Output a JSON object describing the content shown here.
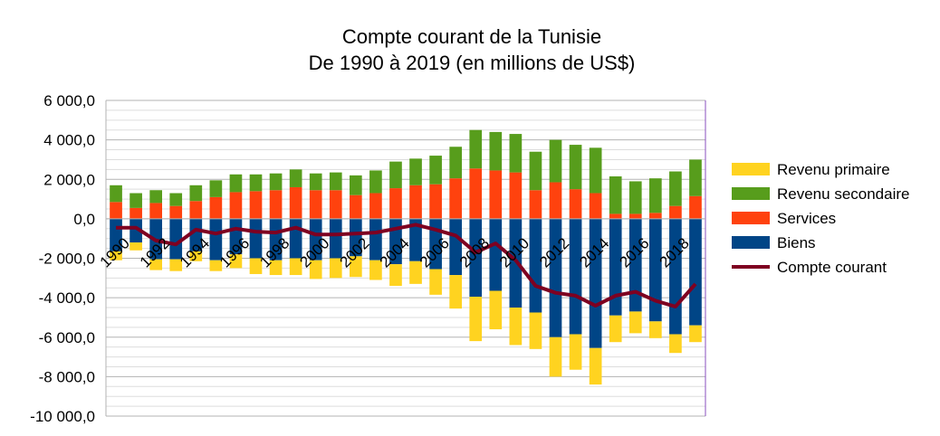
{
  "chart_data": {
    "type": "bar",
    "subtype": "stacked-bar-with-line",
    "title": "Compte courant de la Tunisie",
    "subtitle": "De 1990 à 2019 (en millions de US$)",
    "xlabel": "",
    "ylabel": "",
    "ylim": [
      -10000,
      6000
    ],
    "yticks": [
      6000,
      4000,
      2000,
      0,
      -2000,
      -4000,
      -6000,
      -8000,
      -10000
    ],
    "ytick_labels": [
      "6 000,0",
      "4 000,0",
      "2 000,0",
      "0,0",
      "-2 000,0",
      "-4 000,0",
      "-6 000,0",
      "-8 000,0",
      "-10 000,0"
    ],
    "grid": true,
    "legend_position": "right",
    "categories": [
      "1990",
      "1991",
      "1992",
      "1993",
      "1994",
      "1995",
      "1996",
      "1997",
      "1998",
      "1999",
      "2000",
      "2001",
      "2002",
      "2003",
      "2004",
      "2005",
      "2006",
      "2007",
      "2008",
      "2009",
      "2010",
      "2011",
      "2012",
      "2013",
      "2014",
      "2015",
      "2016",
      "2017",
      "2018",
      "2019"
    ],
    "xtick_labels": [
      "1990",
      "1992",
      "1994",
      "1996",
      "1998",
      "2000",
      "2002",
      "2004",
      "2006",
      "2008",
      "2010",
      "2012",
      "2014",
      "2016",
      "2018"
    ],
    "series": [
      {
        "name": "Revenu primaire",
        "kind": "bar",
        "color": "#ffd320",
        "values": [
          -450,
          -400,
          -550,
          -600,
          -500,
          -550,
          -700,
          -800,
          -750,
          -850,
          -950,
          -1000,
          -1050,
          -1000,
          -1100,
          -1150,
          -1300,
          -1700,
          -2250,
          -1950,
          -1900,
          -1850,
          -2000,
          -1800,
          -1850,
          -1350,
          -1100,
          -850,
          -950,
          -850
        ]
      },
      {
        "name": "Revenu secondaire",
        "kind": "bar",
        "color": "#579d1c",
        "values": [
          850,
          750,
          650,
          650,
          800,
          850,
          900,
          850,
          850,
          900,
          850,
          900,
          1000,
          1150,
          1350,
          1350,
          1450,
          1600,
          1950,
          1950,
          1950,
          1950,
          2150,
          2250,
          2300,
          1900,
          1650,
          1750,
          1750,
          1850
        ]
      },
      {
        "name": "Services",
        "kind": "bar",
        "color": "#ff420e",
        "values": [
          850,
          550,
          800,
          650,
          900,
          1100,
          1350,
          1400,
          1450,
          1600,
          1450,
          1450,
          1200,
          1300,
          1550,
          1700,
          1750,
          2050,
          2550,
          2450,
          2350,
          1450,
          1850,
          1500,
          1300,
          250,
          250,
          300,
          650,
          1150
        ]
      },
      {
        "name": "Biens",
        "kind": "bar",
        "color": "#004586",
        "values": [
          -1650,
          -1200,
          -2050,
          -2050,
          -1650,
          -2100,
          -1800,
          -2000,
          -2100,
          -2000,
          -2100,
          -2000,
          -1900,
          -2100,
          -2300,
          -2150,
          -2550,
          -2850,
          -3950,
          -3650,
          -4500,
          -4750,
          -6000,
          -5850,
          -6550,
          -4900,
          -4700,
          -5200,
          -5850,
          -5400
        ]
      },
      {
        "name": "Compte courant",
        "kind": "line",
        "color": "#7e0021",
        "values": [
          -450,
          -450,
          -1100,
          -1300,
          -550,
          -750,
          -500,
          -650,
          -700,
          -450,
          -800,
          -800,
          -750,
          -700,
          -500,
          -300,
          -550,
          -850,
          -1700,
          -1250,
          -2100,
          -3400,
          -3750,
          -3900,
          -4400,
          -3900,
          -3700,
          -4150,
          -4450,
          -3300
        ]
      }
    ]
  }
}
